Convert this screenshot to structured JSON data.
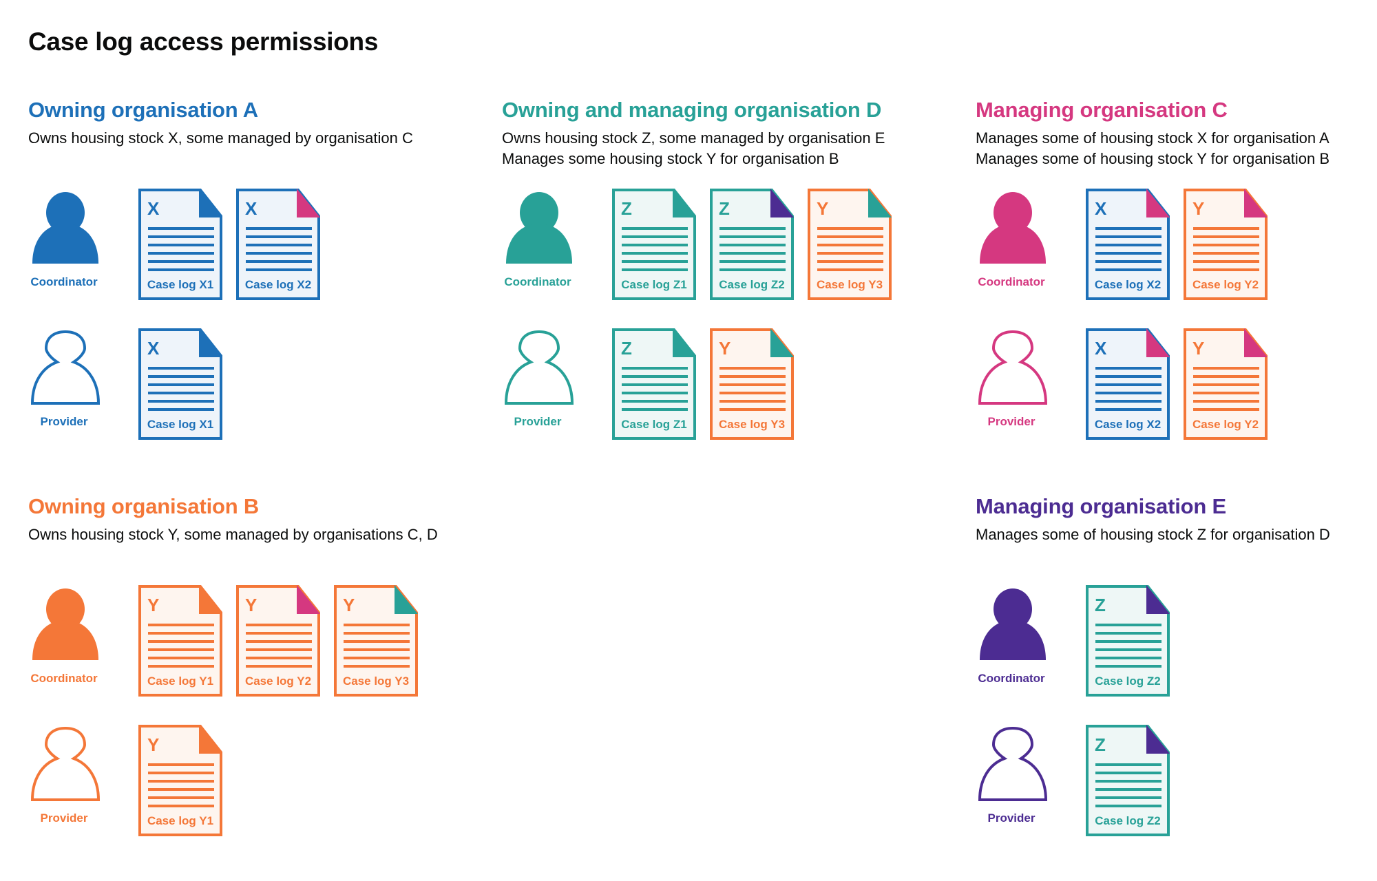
{
  "title": "Case log access permissions",
  "colors": {
    "blue": "#1d70b8",
    "teal": "#28a197",
    "pink": "#d53880",
    "orange": "#f47738",
    "purple": "#4c2c92"
  },
  "tints": {
    "blue": "#eef4fa",
    "teal": "#eef7f6",
    "orange": "#fef5ef"
  },
  "sections": [
    {
      "title": "Owning organisation A",
      "color": "blue",
      "description": [
        "Owns housing stock X, some managed by organisation C"
      ],
      "rows": [
        {
          "role": "Coordinator",
          "filled": true,
          "docs": [
            {
              "letter": "X",
              "label": "Case log X1",
              "color": "blue",
              "corner": "blue"
            },
            {
              "letter": "X",
              "label": "Case log X2",
              "color": "blue",
              "corner": "pink"
            }
          ]
        },
        {
          "role": "Provider",
          "filled": false,
          "docs": [
            {
              "letter": "X",
              "label": "Case log X1",
              "color": "blue",
              "corner": "blue"
            }
          ]
        }
      ]
    },
    {
      "title": "Owning and managing organisation D",
      "color": "teal",
      "description": [
        "Owns housing stock Z, some managed by organisation E",
        "Manages some housing stock Y for organisation B"
      ],
      "rows": [
        {
          "role": "Coordinator",
          "filled": true,
          "docs": [
            {
              "letter": "Z",
              "label": "Case log Z1",
              "color": "teal",
              "corner": "teal"
            },
            {
              "letter": "Z",
              "label": "Case log Z2",
              "color": "teal",
              "corner": "purple"
            },
            {
              "letter": "Y",
              "label": "Case log Y3",
              "color": "orange",
              "corner": "teal"
            }
          ]
        },
        {
          "role": "Provider",
          "filled": false,
          "docs": [
            {
              "letter": "Z",
              "label": "Case log Z1",
              "color": "teal",
              "corner": "teal"
            },
            {
              "letter": "Y",
              "label": "Case log Y3",
              "color": "orange",
              "corner": "teal"
            }
          ]
        }
      ]
    },
    {
      "title": "Managing organisation C",
      "color": "pink",
      "description": [
        "Manages some of housing stock X for organisation A",
        "Manages some of housing stock Y for organisation B"
      ],
      "rows": [
        {
          "role": "Coordinator",
          "filled": true,
          "docs": [
            {
              "letter": "X",
              "label": "Case log X2",
              "color": "blue",
              "corner": "pink"
            },
            {
              "letter": "Y",
              "label": "Case log Y2",
              "color": "orange",
              "corner": "pink"
            }
          ]
        },
        {
          "role": "Provider",
          "filled": false,
          "docs": [
            {
              "letter": "X",
              "label": "Case log X2",
              "color": "blue",
              "corner": "pink"
            },
            {
              "letter": "Y",
              "label": "Case log Y2",
              "color": "orange",
              "corner": "pink"
            }
          ]
        }
      ]
    },
    {
      "title": "Owning organisation B",
      "color": "orange",
      "description": [
        "Owns housing stock Y, some managed by organisations C, D"
      ],
      "rows": [
        {
          "role": "Coordinator",
          "filled": true,
          "docs": [
            {
              "letter": "Y",
              "label": "Case log Y1",
              "color": "orange",
              "corner": "orange"
            },
            {
              "letter": "Y",
              "label": "Case log Y2",
              "color": "orange",
              "corner": "pink"
            },
            {
              "letter": "Y",
              "label": "Case log Y3",
              "color": "orange",
              "corner": "teal"
            }
          ]
        },
        {
          "role": "Provider",
          "filled": false,
          "docs": [
            {
              "letter": "Y",
              "label": "Case log Y1",
              "color": "orange",
              "corner": "orange"
            }
          ]
        }
      ]
    },
    {
      "title": "Managing organisation E",
      "color": "purple",
      "description": [
        "Manages some of housing stock Z for organisation D"
      ],
      "rows": [
        {
          "role": "Coordinator",
          "filled": true,
          "docs": [
            {
              "letter": "Z",
              "label": "Case log Z2",
              "color": "teal",
              "corner": "purple"
            }
          ]
        },
        {
          "role": "Provider",
          "filled": false,
          "docs": [
            {
              "letter": "Z",
              "label": "Case log Z2",
              "color": "teal",
              "corner": "purple"
            }
          ]
        }
      ]
    }
  ]
}
